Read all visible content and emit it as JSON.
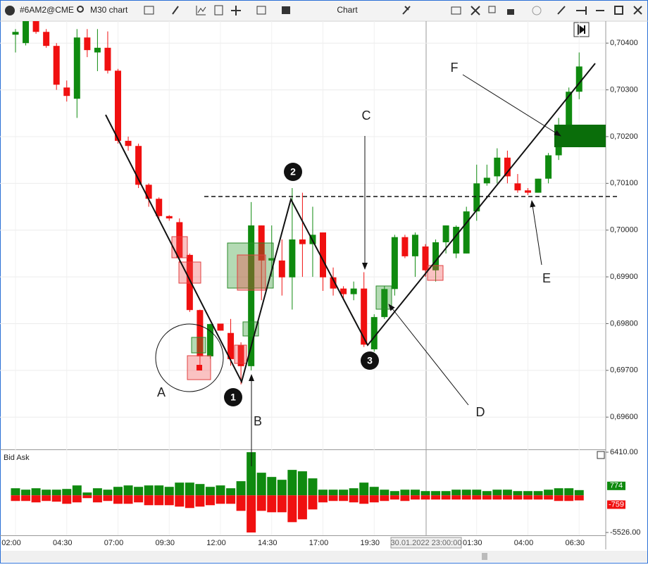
{
  "toolbar": {
    "symbol": "#6AM2@CME",
    "timeframe": "M30 chart",
    "window_title": "Chart"
  },
  "crosshair_label": "30.01.2022 23:00:00",
  "annotations": [
    "A",
    "B",
    "C",
    "D",
    "E",
    "F",
    "1",
    "2",
    "3"
  ],
  "chart_data": [
    {
      "type": "candlestick",
      "up_color": "#0f8a0f",
      "down_color": "#f01010",
      "grid": true,
      "categories": [
        "02:00",
        null,
        null,
        null,
        null,
        "04:30",
        null,
        null,
        null,
        null,
        "07:00",
        null,
        null,
        null,
        null,
        "09:30",
        null,
        null,
        null,
        null,
        "12:00",
        null,
        null,
        null,
        null,
        "14:30",
        null,
        null,
        null,
        null,
        "17:00",
        null,
        null,
        null,
        null,
        "19:30",
        null,
        null,
        null,
        null,
        null,
        null,
        null,
        null,
        null,
        "01:30",
        null,
        null,
        null,
        null,
        "04:00",
        null,
        null,
        null,
        null,
        "06:30"
      ],
      "open": [
        0.70418,
        0.704,
        0.70447,
        0.70424,
        0.70394,
        0.70305,
        0.70281,
        0.70412,
        0.7038,
        0.7039,
        0.70341,
        0.70191,
        0.7018,
        0.70097,
        0.70067,
        0.7003,
        0.70017,
        0.69947,
        0.69829,
        0.6973,
        0.698,
        0.6978,
        0.69754,
        0.69709,
        0.7001,
        0.69935,
        0.69935,
        0.69899,
        0.6998,
        0.6997,
        0.69995,
        0.69899,
        0.69875,
        0.69863,
        0.69875,
        0.69745,
        0.69814,
        0.69874,
        0.69985,
        0.69944,
        0.69965,
        0.69914,
        0.69974,
        0.6995,
        0.6995,
        0.7004,
        0.701,
        0.70115,
        0.70155,
        0.701,
        0.70085,
        0.7008,
        0.7011,
        0.7016,
        0.70217,
        0.70296
      ],
      "high": [
        0.7043,
        0.70447,
        0.70447,
        0.7043,
        0.704,
        0.7032,
        0.7043,
        0.7043,
        0.7043,
        0.70425,
        0.70345,
        0.702,
        0.70185,
        0.701,
        0.7007,
        0.70032,
        0.70025,
        0.6995,
        0.6983,
        0.698,
        0.698,
        0.6981,
        0.6976,
        0.7006,
        0.7001,
        0.7001,
        0.6998,
        0.7009,
        0.7008,
        0.7005,
        0.69995,
        0.6992,
        0.6988,
        0.6989,
        0.6991,
        0.6982,
        0.6988,
        0.6999,
        0.6999,
        0.69995,
        0.6997,
        0.6998,
        0.7001,
        0.7001,
        0.7005,
        0.7014,
        0.7014,
        0.70175,
        0.7017,
        0.7012,
        0.7009,
        0.7011,
        0.70165,
        0.7024,
        0.70305,
        0.7038
      ],
      "low": [
        0.7038,
        0.70395,
        0.7042,
        0.7039,
        0.703,
        0.70275,
        0.7024,
        0.7037,
        0.7034,
        0.70335,
        0.70185,
        0.7017,
        0.7009,
        0.7005,
        0.70025,
        0.7002,
        0.6993,
        0.69825,
        0.697,
        0.69725,
        0.69785,
        0.6971,
        0.6967,
        0.697,
        0.6985,
        0.699,
        0.6986,
        0.6983,
        0.699,
        0.699,
        0.6987,
        0.6986,
        0.6985,
        0.6985,
        0.6975,
        0.6974,
        0.6981,
        0.6986,
        0.6994,
        0.699,
        0.699,
        0.6989,
        0.6995,
        0.6994,
        0.6995,
        0.7002,
        0.70095,
        0.701,
        0.701,
        0.7008,
        0.70075,
        0.7008,
        0.701,
        0.7015,
        0.702,
        0.7028
      ],
      "close": [
        0.70424,
        0.70447,
        0.70424,
        0.70394,
        0.70311,
        0.70287,
        0.70412,
        0.70385,
        0.7039,
        0.70341,
        0.70191,
        0.7018,
        0.70097,
        0.70067,
        0.7003,
        0.70025,
        0.6994,
        0.69829,
        0.6973,
        0.69799,
        0.69785,
        0.69724,
        0.69709,
        0.7001,
        0.69935,
        0.6994,
        0.69899,
        0.6998,
        0.6997,
        0.6999,
        0.69899,
        0.69875,
        0.69863,
        0.69875,
        0.69755,
        0.69814,
        0.69874,
        0.69985,
        0.69944,
        0.6999,
        0.69914,
        0.69974,
        0.7001,
        0.70007,
        0.7004,
        0.701,
        0.70112,
        0.70155,
        0.70115,
        0.70085,
        0.7008,
        0.7011,
        0.7016,
        0.70217,
        0.70296,
        0.7035
      ],
      "ylim": [
        0.69531,
        0.70447
      ],
      "yticks": [
        {
          "value": 0.704,
          "label": "0,70400"
        },
        {
          "value": 0.703,
          "label": "0,70300"
        },
        {
          "value": 0.702,
          "label": "0,70200"
        },
        {
          "value": 0.701,
          "label": "0,70100"
        },
        {
          "value": 0.7,
          "label": "0,70000"
        },
        {
          "value": 0.699,
          "label": "0,69900"
        },
        {
          "value": 0.698,
          "label": "0,69800"
        },
        {
          "value": 0.697,
          "label": "0,69700"
        },
        {
          "value": 0.696,
          "label": "0,69600"
        }
      ]
    },
    {
      "type": "bar",
      "title": "Bid Ask",
      "series": [
        {
          "color": "#0f8a0f",
          "values": [
            1050,
            840,
            1050,
            840,
            840,
            945,
            1470,
            420,
            1050,
            840,
            1260,
            1470,
            1260,
            1470,
            1470,
            1260,
            1890,
            1890,
            1680,
            1260,
            1470,
            1050,
            2100,
            6410,
            3360,
            2730,
            2310,
            3780,
            3570,
            2520,
            840,
            840,
            840,
            1050,
            1890,
            1260,
            840,
            630,
            840,
            840,
            630,
            630,
            630,
            840,
            840,
            840,
            630,
            840,
            840,
            630,
            630,
            630,
            840,
            1050,
            1050,
            774
          ]
        },
        {
          "color": "#f01010",
          "values": [
            -840,
            -840,
            -1050,
            -840,
            -945,
            -1260,
            -1050,
            -420,
            -1050,
            -840,
            -1260,
            -1260,
            -1050,
            -1470,
            -1470,
            -1470,
            -1680,
            -1890,
            -1680,
            -1470,
            -1260,
            -1260,
            -2310,
            -5526,
            -2310,
            -2520,
            -2520,
            -3990,
            -3570,
            -2100,
            -1050,
            -840,
            -840,
            -1050,
            -1260,
            -1050,
            -840,
            -630,
            -840,
            -630,
            -630,
            -630,
            -630,
            -630,
            -630,
            -630,
            -630,
            -630,
            -630,
            -630,
            -630,
            -630,
            -630,
            -840,
            -840,
            -759
          ]
        }
      ],
      "ylim": [
        -5526,
        6410
      ],
      "yticks": [
        {
          "value": 6410,
          "label": "6410.00"
        },
        {
          "value": -5526,
          "label": "-5526.00"
        }
      ]
    }
  ]
}
